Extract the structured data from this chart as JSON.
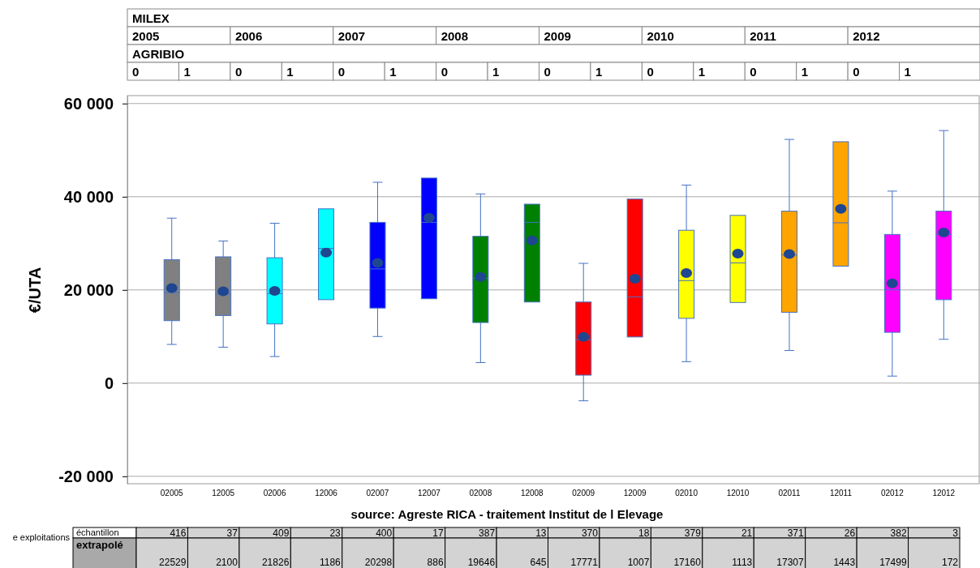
{
  "chart_data": {
    "type": "box",
    "ylabel": "€/UTA",
    "categories": [
      "02005",
      "12005",
      "02006",
      "12006",
      "02007",
      "12007",
      "02008",
      "12008",
      "02009",
      "12009",
      "02010",
      "12010",
      "02011",
      "12011",
      "02012",
      "12012"
    ],
    "colors": [
      "#808080",
      "#808080",
      "#00ffff",
      "#00ffff",
      "#0000ff",
      "#0000ff",
      "#008000",
      "#008000",
      "#ff0000",
      "#ff0000",
      "#ffff00",
      "#ffff00",
      "#ffa500",
      "#ffa500",
      "#ff00ff",
      "#ff00ff"
    ],
    "boxes": [
      {
        "low": 8300,
        "q1": 13400,
        "median": 19400,
        "q3": 26500,
        "high": 35400,
        "mean": 20400
      },
      {
        "low": 7700,
        "q1": 14500,
        "median": 19100,
        "q3": 27100,
        "high": 30500,
        "mean": 19700
      },
      {
        "low": 5700,
        "q1": 12700,
        "median": 19200,
        "q3": 26900,
        "high": 34300,
        "mean": 19800
      },
      {
        "low": 17900,
        "q1": 17900,
        "median": 28900,
        "q3": 37400,
        "high": 37400,
        "mean": 28000
      },
      {
        "low": 10000,
        "q1": 16100,
        "median": 24500,
        "q3": 34500,
        "high": 43100,
        "mean": 25800
      },
      {
        "low": 18100,
        "q1": 18100,
        "median": 34500,
        "q3": 44000,
        "high": 44000,
        "mean": 35500
      },
      {
        "low": 4400,
        "q1": 13000,
        "median": 22500,
        "q3": 31500,
        "high": 40600,
        "mean": 22800
      },
      {
        "low": 17400,
        "q1": 17400,
        "median": 34500,
        "q3": 38400,
        "high": 38400,
        "mean": 30600
      },
      {
        "low": -3800,
        "q1": 1700,
        "median": 9300,
        "q3": 17400,
        "high": 25700,
        "mean": 9900
      },
      {
        "low": 9900,
        "q1": 9900,
        "median": 18500,
        "q3": 39500,
        "high": 39500,
        "mean": 22400
      },
      {
        "low": 4600,
        "q1": 13900,
        "median": 22000,
        "q3": 32800,
        "high": 42500,
        "mean": 23600
      },
      {
        "low": 17300,
        "q1": 17300,
        "median": 25800,
        "q3": 36000,
        "high": 36000,
        "mean": 27800
      },
      {
        "low": 7000,
        "q1": 15200,
        "median": 27500,
        "q3": 36900,
        "high": 52300,
        "mean": 27700
      },
      {
        "low": 25100,
        "q1": 25100,
        "median": 34400,
        "q3": 51800,
        "high": 51800,
        "mean": 37400
      },
      {
        "low": 1500,
        "q1": 10900,
        "median": 20000,
        "q3": 31900,
        "high": 41200,
        "mean": 21400
      },
      {
        "low": 9400,
        "q1": 17900,
        "median": 31900,
        "q3": 36900,
        "high": 54200,
        "mean": 32300
      }
    ],
    "ylim": [
      -21600,
      61700
    ],
    "yticks": [
      {
        "value": -20000,
        "label": "-20 000"
      },
      {
        "value": 0,
        "label": "0"
      },
      {
        "value": 20000,
        "label": "20 000"
      },
      {
        "value": 40000,
        "label": "40 000"
      },
      {
        "value": 60000,
        "label": "60 000"
      }
    ],
    "grid": "y",
    "annotations": [
      "MILEX",
      "2005",
      "2006",
      "2007",
      "2008",
      "2009",
      "2010",
      "2011",
      "2012",
      "AGRIBIO",
      "0",
      "1",
      "0",
      "1",
      "0",
      "1",
      "0",
      "1",
      "0",
      "1",
      "0",
      "1",
      "0",
      "1",
      "0",
      "1",
      "source: Agreste RICA  - traitement Institut de l Elevage",
      "e exploitations",
      "échantillon",
      "extrapolé",
      "416",
      "37",
      "409",
      "23",
      "400",
      "17",
      "387",
      "13",
      "370",
      "18",
      "379",
      "21",
      "371",
      "26",
      "382",
      "3",
      "22529",
      "2100",
      "21826",
      "1186",
      "20298",
      "886",
      "19646",
      "645",
      "17771",
      "1007",
      "17160",
      "1113",
      "17307",
      "1443",
      "17499",
      "172"
    ]
  }
}
